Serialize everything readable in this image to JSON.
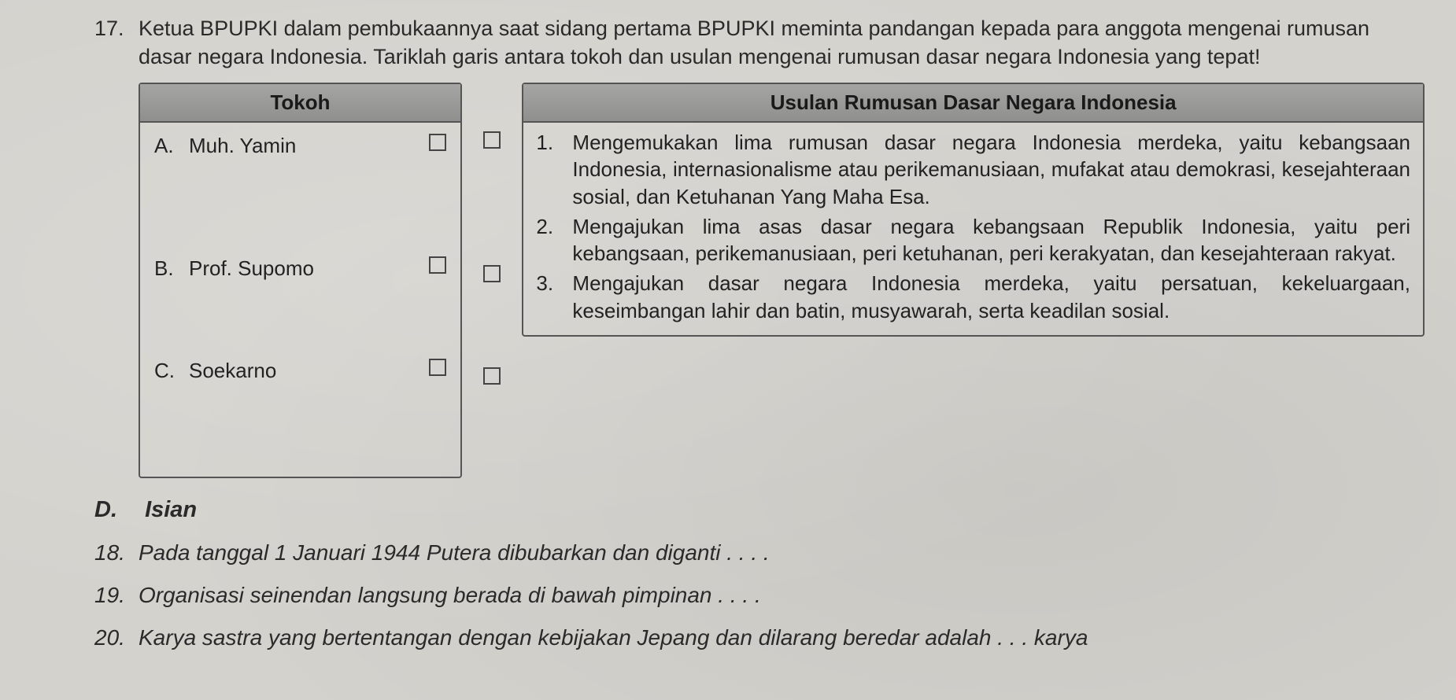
{
  "page": {
    "background_color": "#d4d2cd",
    "text_color": "#222222",
    "font_family": "Arial"
  },
  "q17": {
    "number": "17.",
    "text": "Ketua BPUPKI dalam pembukaannya saat sidang pertama BPUPKI meminta pandangan kepada para anggota mengenai rumusan dasar negara Indonesia. Tariklah garis antara tokoh dan usulan mengenai rumusan dasar negara Indonesia yang tepat!",
    "tokoh_header": "Tokoh",
    "usulan_header": "Usulan Rumusan Dasar Negara Indonesia",
    "header_bg": "#9a9a99",
    "border_color": "#555555",
    "checkbox_border": "#444444",
    "tokoh": [
      {
        "letter": "A.",
        "name": "Muh. Yamin"
      },
      {
        "letter": "B.",
        "name": "Prof. Supomo"
      },
      {
        "letter": "C.",
        "name": "Soekarno"
      }
    ],
    "usulan": [
      {
        "num": "1.",
        "desc": "Mengemukakan lima rumusan dasar negara Indonesia merdeka, yaitu kebangsaan Indonesia, internasionalisme atau perikemanusiaan, mufakat atau demokrasi, ke­sejahteraan sosial, dan Ketuhanan Yang Maha Esa."
      },
      {
        "num": "2.",
        "desc": "Mengajukan lima asas dasar negara kebangsaan Republik Indonesia, yaitu peri kebangsaan, perikemanusiaan, peri ketuhanan, peri kerakyatan, dan kesejahteraan rakyat."
      },
      {
        "num": "3.",
        "desc": "Mengajukan dasar negara Indonesia merdeka, yaitu persatuan, kekeluargaan, keseimbangan lahir dan batin, musyawarah, serta keadilan sosial."
      }
    ]
  },
  "sectionD": {
    "letter": "D.",
    "title": "Isian"
  },
  "q18": {
    "number": "18.",
    "text": "Pada tanggal 1 Januari 1944 Putera dibubarkan dan diganti . . . ."
  },
  "q19": {
    "number": "19.",
    "text": "Organisasi seinendan langsung berada di bawah pimpinan . . . ."
  },
  "q20": {
    "number": "20.",
    "text": "Karya sastra yang bertentangan dengan kebijakan Jepang dan dilarang beredar adalah . . . karya"
  }
}
